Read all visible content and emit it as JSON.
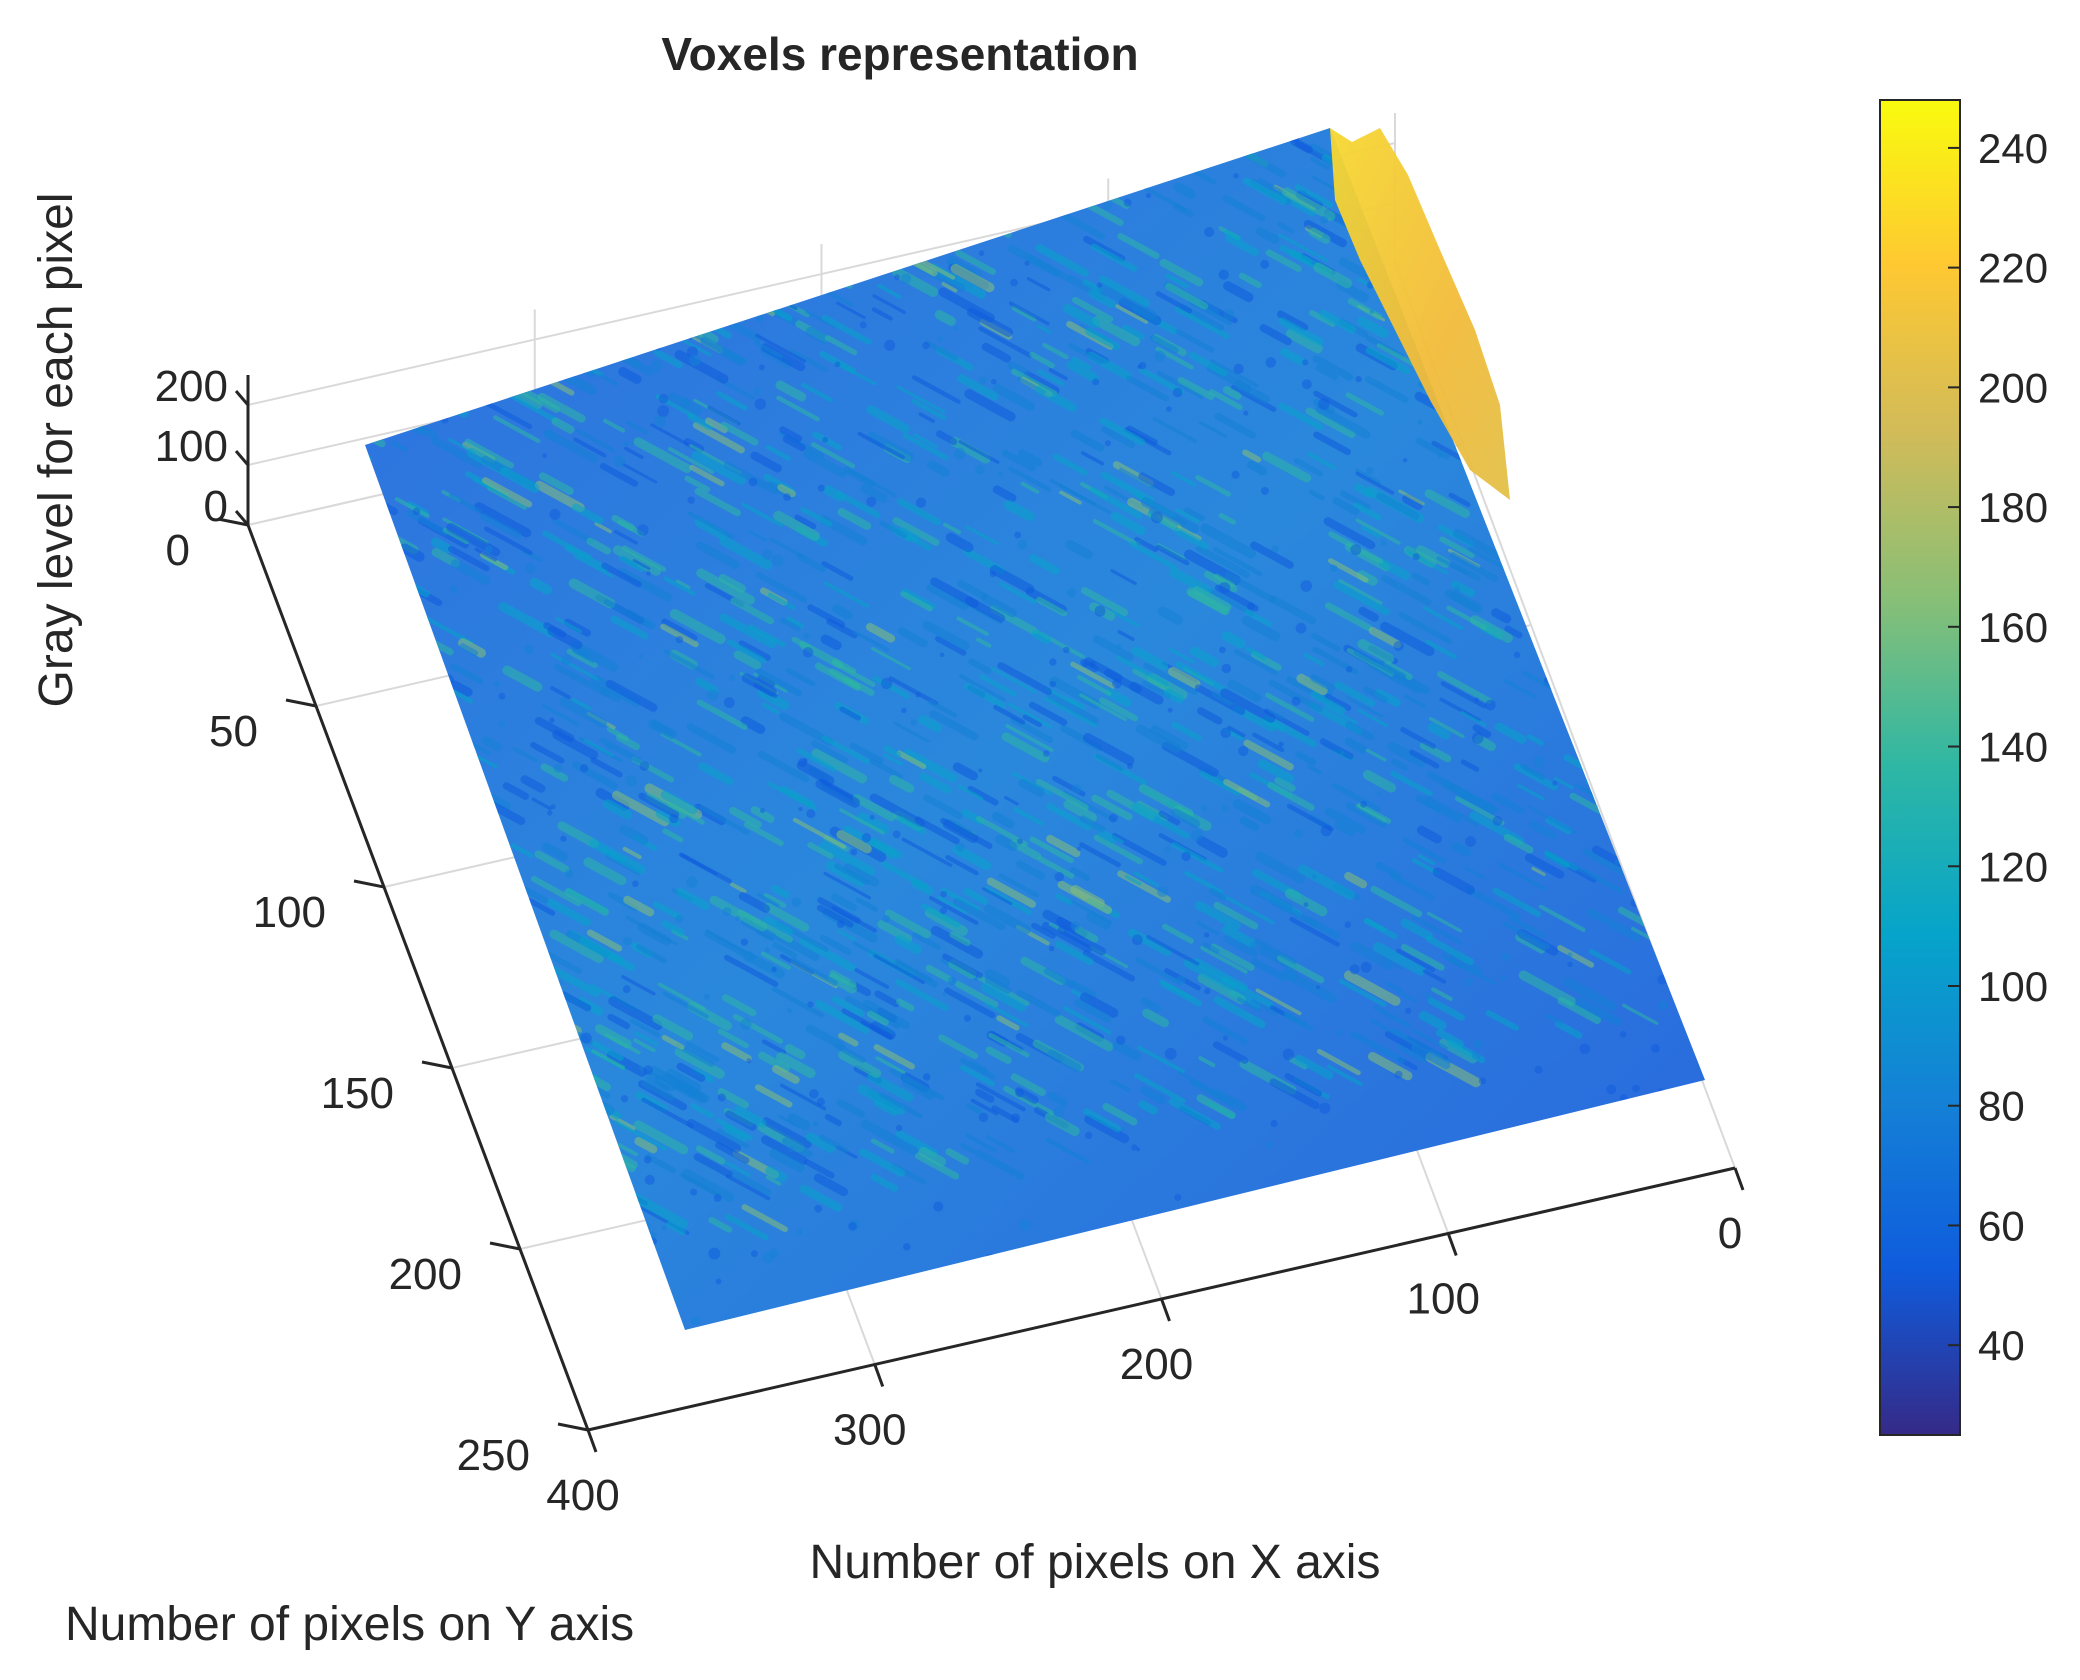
{
  "chart_data": {
    "type": "surface",
    "title": "Voxels representation",
    "xlabel": "Number of pixels on X axis",
    "ylabel": "Number of pixels on Y axis",
    "zlabel": "Gray level for each pixel",
    "x_ticks": [
      0,
      100,
      200,
      300,
      400
    ],
    "y_ticks": [
      0,
      50,
      100,
      150,
      200,
      250
    ],
    "z_ticks": [
      0,
      100,
      200
    ],
    "xlim": [
      0,
      400
    ],
    "ylim": [
      0,
      250
    ],
    "zlim": [
      0,
      250
    ],
    "grid": true,
    "colormap": "parula",
    "colorbar": {
      "ticks": [
        40,
        60,
        80,
        100,
        120,
        140,
        160,
        180,
        200,
        220,
        240
      ],
      "range": [
        25,
        248
      ],
      "placement": "right"
    },
    "surface_summary": {
      "typical_range": [
        60,
        160
      ],
      "peak_value": 245,
      "peak_region": "high gray levels along the ridge near X = 0, Y = 0 to 50"
    },
    "colors": {
      "colormap_stops": [
        "#352a87",
        "#0f5cdd",
        "#1481d6",
        "#06a4ca",
        "#2eb7a4",
        "#87bf77",
        "#d1bb59",
        "#fec832",
        "#f9fb0e"
      ]
    }
  }
}
